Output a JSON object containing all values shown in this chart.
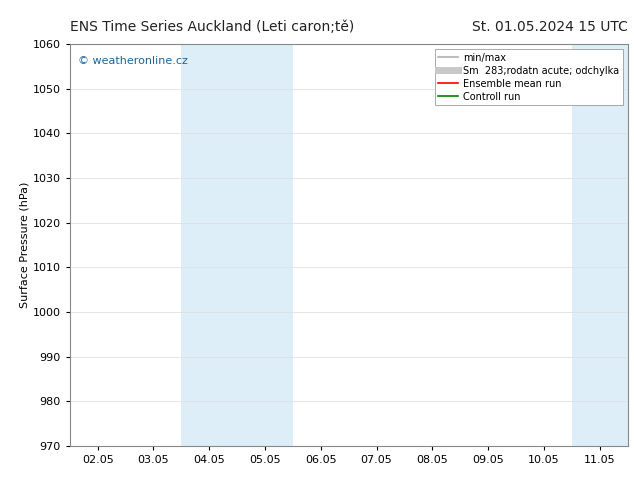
{
  "title_left": "ENS Time Series Auckland (Leti caron;tě)",
  "title_right": "St. 01.05.2024 15 UTC",
  "ylabel": "Surface Pressure (hPa)",
  "ylim": [
    970,
    1060
  ],
  "yticks": [
    970,
    980,
    990,
    1000,
    1010,
    1020,
    1030,
    1040,
    1050,
    1060
  ],
  "xtick_labels": [
    "02.05",
    "03.05",
    "04.05",
    "05.05",
    "06.05",
    "07.05",
    "08.05",
    "09.05",
    "10.05",
    "11.05"
  ],
  "xtick_positions": [
    0,
    1,
    2,
    3,
    4,
    5,
    6,
    7,
    8,
    9
  ],
  "shaded_regions": [
    {
      "xmin": 1.5,
      "xmax": 3.5,
      "color": "#ddeef8"
    },
    {
      "xmin": 8.5,
      "xmax": 9.5,
      "color": "#ddeef8"
    }
  ],
  "watermark_text": "© weatheronline.cz",
  "watermark_color": "#1a6699",
  "legend_entries": [
    {
      "label": "min/max",
      "color": "#b0b0b0",
      "lw": 1.2,
      "ls": "-"
    },
    {
      "label": "Sm  283;rodatn acute; odchylka",
      "color": "#c8c8c8",
      "lw": 5,
      "ls": "-"
    },
    {
      "label": "Ensemble mean run",
      "color": "red",
      "lw": 1.2,
      "ls": "-"
    },
    {
      "label": "Controll run",
      "color": "green",
      "lw": 1.2,
      "ls": "-"
    }
  ],
  "background_color": "#ffffff",
  "grid_color": "#e0e0e0",
  "font_size": 8,
  "title_font_size": 10
}
